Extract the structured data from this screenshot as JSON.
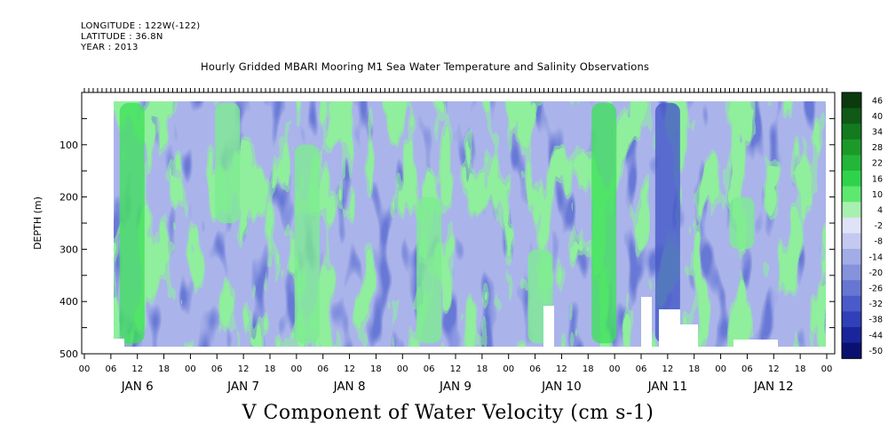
{
  "header": {
    "longitude": "LONGITUDE : 122W(-122)",
    "latitude": "LATITUDE : 36.8N",
    "year": "YEAR : 2013"
  },
  "chart_data": {
    "type": "heatmap",
    "title": "Hourly Gridded MBARI Mooring M1 Sea Water Temperature and Salinity Observations",
    "xlabel": "V Component of Water Velocity (cm s-1)",
    "ylabel": "DEPTH (m)",
    "ylim": [
      500,
      0
    ],
    "y_ticks": [
      100,
      200,
      300,
      400,
      500
    ],
    "x_hour_ticks": [
      "00",
      "06",
      "12",
      "18",
      "00",
      "06",
      "12",
      "18",
      "00",
      "06",
      "12",
      "18",
      "00",
      "06",
      "12",
      "18",
      "00",
      "06",
      "12",
      "18",
      "00",
      "06",
      "12",
      "18",
      "00",
      "06",
      "12",
      "18",
      "00"
    ],
    "x_day_labels": [
      "JAN  6",
      "JAN  7",
      "JAN  8",
      "JAN  9",
      "JAN 10",
      "JAN 11",
      "JAN 12"
    ],
    "colorbar": {
      "levels": [
        "46",
        "40",
        "34",
        "28",
        "22",
        "16",
        "10",
        "4",
        "-2",
        "-8",
        "-14",
        "-20",
        "-26",
        "-32",
        "-38",
        "-44",
        "-50"
      ],
      "colors": [
        "#0b3a0e",
        "#0f5a17",
        "#137a1f",
        "#1b9a2a",
        "#23b638",
        "#2fd34a",
        "#5ee870",
        "#a8f0b0",
        "#dfe3f7",
        "#c3c9ef",
        "#a2ace6",
        "#8592dc",
        "#6676d2",
        "#4a5ac8",
        "#3040b8",
        "#1a259c",
        "#0a1070"
      ]
    },
    "field_pattern": [
      {
        "day_pos": 0.45,
        "depth_from": 20,
        "depth_to": 480,
        "value": 20
      },
      {
        "day_pos": 1.35,
        "depth_from": 20,
        "depth_to": 250,
        "value": 8
      },
      {
        "day_pos": 2.1,
        "depth_from": 100,
        "depth_to": 480,
        "value": 6
      },
      {
        "day_pos": 3.25,
        "depth_from": 200,
        "depth_to": 480,
        "value": 10
      },
      {
        "day_pos": 4.3,
        "depth_from": 300,
        "depth_to": 480,
        "value": 12
      },
      {
        "day_pos": 4.9,
        "depth_from": 20,
        "depth_to": 480,
        "value": 18
      },
      {
        "day_pos": 5.5,
        "depth_from": 20,
        "depth_to": 480,
        "value": -30
      },
      {
        "day_pos": 6.2,
        "depth_from": 200,
        "depth_to": 300,
        "value": 8
      }
    ]
  }
}
